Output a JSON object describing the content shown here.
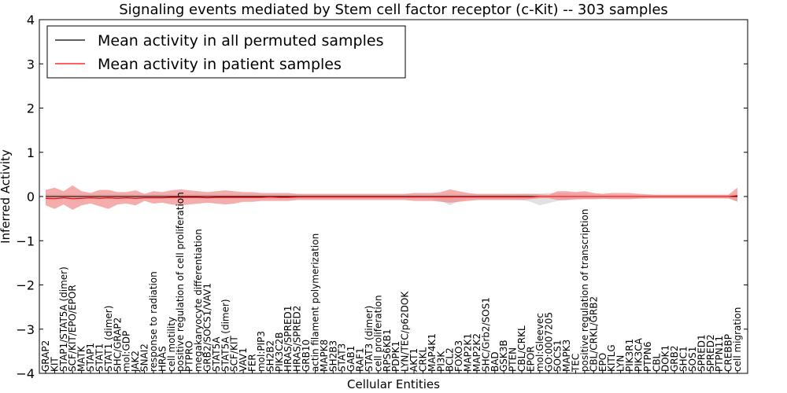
{
  "chart_data": {
    "type": "line",
    "title": "Signaling events mediated by Stem cell factor receptor (c-Kit) -- 303 samples",
    "xlabel": "Cellular Entities",
    "ylabel": "Inferred Activity",
    "ylim": [
      -4,
      4
    ],
    "yticks": [
      4,
      3,
      2,
      1,
      0,
      -1,
      -2,
      -3,
      -4
    ],
    "ytick_labels": [
      "4",
      "3",
      "2",
      "1",
      "0",
      "−1",
      "−2",
      "−3",
      "−4"
    ],
    "legend_position": "top-left",
    "categories": [
      "GRAP2",
      "KIT",
      "STAP1/STAT5A (dimer)",
      "SCF/KIT/EPO/EPOR",
      "MATK",
      "STAP1",
      "STAT1",
      "STAT1 (dimer)",
      "SHC/GRAP2",
      "mol:GDP",
      "JAK2",
      "SNAI2",
      "response to radiation",
      "HRAS",
      "cell motility",
      "positive regulation of cell proliferation",
      "PTPRO",
      "megakaryocyte differentiation",
      "GRB2/SOCS1/VAV1",
      "STAT5A",
      "STAT5A (dimer)",
      "SCF/KIT",
      "VAV1",
      "FER",
      "mol:PIP3",
      "SH2B2",
      "PIK3C2B",
      "HRAS/SPRED1",
      "HRAS/SPRED2",
      "GRB10",
      "actin filament polymerization",
      "MAPK8",
      "SH2B3",
      "STAT3",
      "GAB1",
      "RAF1",
      "STAT3 (dimer)",
      "cell proliferation",
      "RPS6KB1",
      "PDPK1",
      "LYN/TEC/p62DOK",
      "AKT1",
      "CRKL",
      "MAP4K1",
      "PI3K",
      "BCL2",
      "FOXO3",
      "MAP2K1",
      "MAP2K2",
      "SHC/Grb2/SOS1",
      "BAD",
      "GSK3B",
      "PTEN",
      "CBL/CRKL",
      "EPOR",
      "mol:Gleevec",
      "GO:0007205",
      "SOCS1",
      "MAPK3",
      "TEC",
      "positive regulation of transcription",
      "CBL/CRKL/GRB2",
      "EPO",
      "KITLG",
      "LYN",
      "PIK3R1",
      "PIK3CA",
      "PTPN6",
      "CBL",
      "DOK1",
      "GRB2",
      "SHC1",
      "SOS1",
      "SPRED1",
      "SPRED2",
      "PTPN11",
      "CREBBP",
      "cell migration"
    ],
    "series": [
      {
        "name": "Mean activity in all permuted samples",
        "color": "#000000",
        "values": [
          0,
          0,
          0,
          0,
          0,
          0,
          0,
          0,
          0,
          0,
          0,
          0,
          0,
          0,
          0,
          0,
          0,
          0,
          0,
          0,
          0,
          0,
          0,
          0,
          0,
          0,
          0,
          0,
          0,
          0,
          0,
          0,
          0,
          0,
          0,
          0,
          0,
          0,
          0,
          0,
          0,
          0,
          0,
          0,
          0,
          0,
          0,
          0,
          0,
          0,
          0,
          0,
          0,
          0,
          0,
          0,
          0,
          0,
          0,
          0,
          0,
          0,
          0,
          0,
          0,
          0,
          0,
          0,
          0,
          0,
          0,
          0,
          0,
          0,
          0,
          0,
          0,
          0
        ]
      },
      {
        "name": "Mean activity in patient samples",
        "color": "#ff0000",
        "values": [
          -0.04,
          -0.05,
          -0.03,
          -0.05,
          -0.04,
          -0.03,
          -0.04,
          -0.03,
          -0.04,
          -0.03,
          -0.04,
          -0.03,
          -0.03,
          -0.03,
          -0.02,
          -0.02,
          -0.02,
          -0.02,
          -0.03,
          -0.02,
          -0.02,
          -0.02,
          -0.02,
          -0.02,
          -0.02,
          -0.01,
          -0.02,
          -0.02,
          -0.01,
          -0.01,
          -0.01,
          -0.01,
          -0.01,
          -0.01,
          -0.01,
          -0.01,
          -0.01,
          -0.01,
          -0.01,
          -0.01,
          -0.01,
          -0.01,
          -0.01,
          -0.01,
          -0.01,
          -0.01,
          -0.01,
          -0.01,
          -0.01,
          -0.01,
          -0.01,
          -0.01,
          -0.01,
          -0.01,
          -0.01,
          0,
          0,
          0,
          0,
          0,
          0,
          0,
          0,
          0,
          0,
          0,
          0,
          0,
          0,
          0,
          0,
          0,
          0,
          0,
          0,
          0,
          0,
          0.02
        ]
      }
    ],
    "bands": {
      "permuted": {
        "color": "#c8c8c8",
        "upper": [
          0.06,
          0.05,
          0.05,
          0.05,
          0.05,
          0.05,
          0.05,
          0.05,
          0.05,
          0.05,
          0.05,
          0.05,
          0.05,
          0.05,
          0.05,
          0.05,
          0.05,
          0.05,
          0.05,
          0.05,
          0.05,
          0.05,
          0.05,
          0.05,
          0.05,
          0.05,
          0.05,
          0.05,
          0.05,
          0.05,
          0.05,
          0.05,
          0.05,
          0.05,
          0.05,
          0.05,
          0.05,
          0.05,
          0.05,
          0.05,
          0.05,
          0.05,
          0.05,
          0.05,
          0.05,
          0.05,
          0.05,
          0.05,
          0.05,
          0.05,
          0.05,
          0.05,
          0.05,
          0.06,
          0.06,
          0.07,
          0.08,
          0.08,
          0.08,
          0.07,
          0.06,
          0.05,
          0.05,
          0.04,
          0.04,
          0.04,
          0.04,
          0.04,
          0.04,
          0.04,
          0.04,
          0.04,
          0.04,
          0.04,
          0.04,
          0.04,
          0.04,
          0.05
        ],
        "lower": [
          -0.06,
          -0.05,
          -0.05,
          -0.05,
          -0.05,
          -0.05,
          -0.05,
          -0.05,
          -0.05,
          -0.05,
          -0.05,
          -0.05,
          -0.05,
          -0.05,
          -0.05,
          -0.05,
          -0.05,
          -0.05,
          -0.05,
          -0.05,
          -0.05,
          -0.05,
          -0.05,
          -0.05,
          -0.05,
          -0.05,
          -0.05,
          -0.05,
          -0.05,
          -0.05,
          -0.05,
          -0.05,
          -0.05,
          -0.05,
          -0.05,
          -0.05,
          -0.05,
          -0.05,
          -0.05,
          -0.05,
          -0.05,
          -0.05,
          -0.05,
          -0.06,
          -0.1,
          -0.2,
          -0.1,
          -0.06,
          -0.06,
          -0.06,
          -0.06,
          -0.06,
          -0.06,
          -0.08,
          -0.12,
          -0.2,
          -0.15,
          -0.1,
          -0.08,
          -0.08,
          -0.06,
          -0.06,
          -0.06,
          -0.05,
          -0.05,
          -0.05,
          -0.05,
          -0.05,
          -0.05,
          -0.05,
          -0.05,
          -0.05,
          -0.05,
          -0.05,
          -0.05,
          -0.05,
          -0.05,
          -0.1
        ]
      },
      "patient": {
        "color": "#f08080",
        "upper": [
          0.15,
          0.2,
          0.12,
          0.25,
          0.12,
          0.08,
          0.15,
          0.15,
          0.1,
          0.1,
          0.14,
          0.06,
          0.12,
          0.1,
          0.14,
          0.16,
          0.14,
          0.12,
          0.1,
          0.12,
          0.14,
          0.12,
          0.1,
          0.1,
          0.08,
          0.08,
          0.08,
          0.08,
          0.06,
          0.06,
          0.06,
          0.06,
          0.06,
          0.06,
          0.06,
          0.06,
          0.06,
          0.06,
          0.06,
          0.06,
          0.06,
          0.08,
          0.08,
          0.08,
          0.1,
          0.16,
          0.12,
          0.08,
          0.06,
          0.06,
          0.06,
          0.06,
          0.06,
          0.06,
          0.06,
          0.05,
          0.04,
          0.12,
          0.12,
          0.1,
          0.12,
          0.08,
          0.06,
          0.08,
          0.08,
          0.08,
          0.06,
          0.05,
          0.04,
          0.04,
          0.04,
          0.04,
          0.04,
          0.04,
          0.04,
          0.04,
          0.04,
          0.2
        ],
        "lower": [
          -0.2,
          -0.28,
          -0.18,
          -0.3,
          -0.2,
          -0.16,
          -0.22,
          -0.28,
          -0.18,
          -0.16,
          -0.2,
          -0.1,
          -0.16,
          -0.14,
          -0.18,
          -0.2,
          -0.18,
          -0.16,
          -0.14,
          -0.16,
          -0.18,
          -0.16,
          -0.12,
          -0.12,
          -0.1,
          -0.1,
          -0.1,
          -0.1,
          -0.08,
          -0.08,
          -0.08,
          -0.08,
          -0.08,
          -0.08,
          -0.08,
          -0.08,
          -0.08,
          -0.08,
          -0.08,
          -0.08,
          -0.08,
          -0.1,
          -0.1,
          -0.1,
          -0.12,
          -0.14,
          -0.12,
          -0.1,
          -0.08,
          -0.08,
          -0.08,
          -0.08,
          -0.08,
          -0.08,
          -0.06,
          -0.04,
          -0.04,
          -0.08,
          -0.08,
          -0.06,
          -0.06,
          -0.06,
          -0.05,
          -0.06,
          -0.06,
          -0.06,
          -0.05,
          -0.04,
          -0.04,
          -0.04,
          -0.04,
          -0.04,
          -0.04,
          -0.04,
          -0.04,
          -0.04,
          -0.04,
          -0.12
        ]
      }
    }
  }
}
